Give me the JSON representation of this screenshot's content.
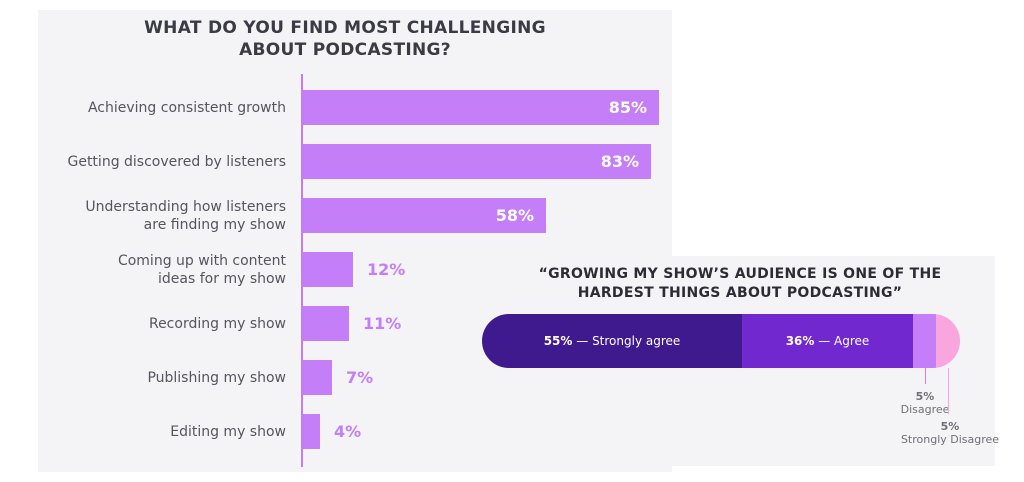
{
  "chart_data": [
    {
      "type": "bar",
      "orientation": "horizontal",
      "title": [
        "WHAT DO YOU FIND MOST CHALLENGING",
        "ABOUT PODCASTING?"
      ],
      "categories": [
        [
          "Achieving consistent growth"
        ],
        [
          "Getting discovered by listeners"
        ],
        [
          "Understanding how listeners",
          "are finding my show"
        ],
        [
          "Coming up with content",
          "ideas for my show"
        ],
        [
          "Recording my show"
        ],
        [
          "Publishing my show"
        ],
        [
          "Editing my show"
        ]
      ],
      "values": [
        85,
        83,
        58,
        12,
        11,
        7,
        4
      ],
      "value_labels": [
        "85%",
        "83%",
        "58%",
        "12%",
        "11%",
        "7%",
        "4%"
      ],
      "xlim": [
        0,
        85
      ],
      "bar_color": "#c47ef7"
    },
    {
      "type": "bar",
      "orientation": "horizontal-stacked",
      "title": [
        "“GROWING MY SHOW’S AUDIENCE IS ONE OF THE",
        "HARDEST THINGS ABOUT PODCASTING”"
      ],
      "series": [
        {
          "name": "Strongly agree",
          "value": 55,
          "value_label": "55%",
          "color": "#3e1a8e"
        },
        {
          "name": "Agree",
          "value": 36,
          "value_label": "36%",
          "color": "#7128cf"
        },
        {
          "name": "Disagree",
          "value": 5,
          "value_label": "5%",
          "color": "#c47ef7"
        },
        {
          "name": "Strongly Disagree",
          "value": 5,
          "value_label": "5%",
          "color": "#f8a6dd"
        }
      ],
      "separator": "—"
    }
  ]
}
